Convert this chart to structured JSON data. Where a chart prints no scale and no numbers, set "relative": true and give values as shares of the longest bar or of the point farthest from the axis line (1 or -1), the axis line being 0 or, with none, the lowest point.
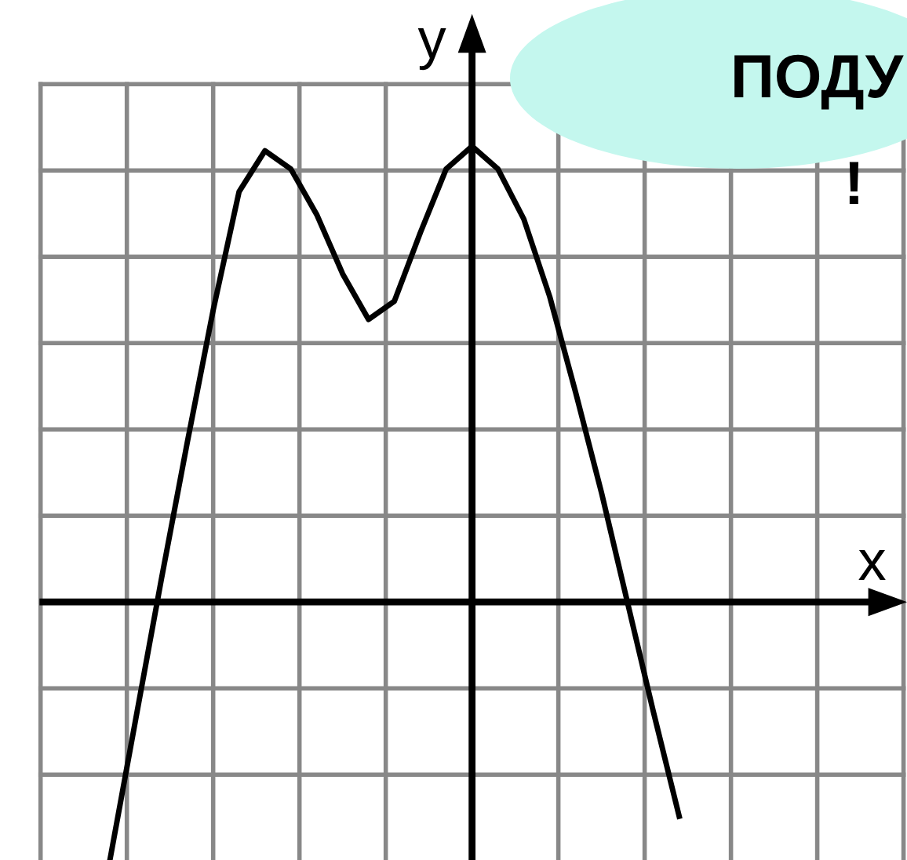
{
  "chart_data": {
    "type": "line",
    "relative": true,
    "xlabel": "x",
    "ylabel": "y",
    "annotations": [
      "ПОДУ",
      "!"
    ],
    "categories": [
      null,
      null,
      null,
      null,
      null,
      null,
      null,
      null,
      null,
      null,
      null,
      null,
      null,
      null,
      null,
      null,
      null,
      null,
      null,
      null,
      null,
      null,
      null
    ],
    "series": [
      {
        "color": "#000000",
        "values": [
          -0.57,
          -0.26,
          0.05,
          0.35,
          0.64,
          0.9,
          0.99,
          0.95,
          0.85,
          0.72,
          0.62,
          0.66,
          0.81,
          0.95,
          1,
          0.95,
          0.84,
          0.67,
          0.46,
          0.24,
          0,
          -0.24,
          -0.47
        ]
      }
    ],
    "grid": true,
    "marker": "none",
    "line_style": "solid"
  }
}
